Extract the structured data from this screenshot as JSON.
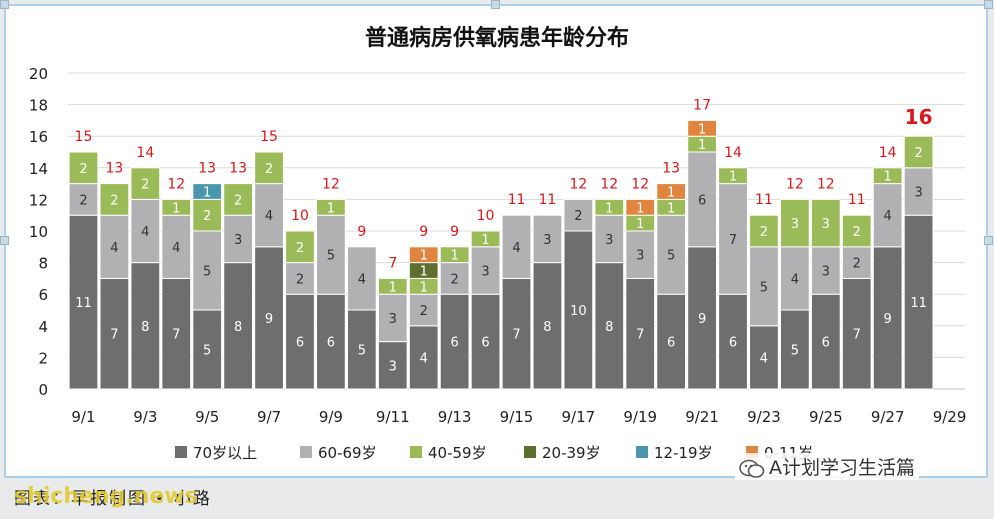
{
  "chart_data": {
    "type": "bar",
    "stacked": true,
    "title": "普通病房供氧病患年龄分布",
    "ylim": [
      0,
      20
    ],
    "yticks": [
      0,
      2,
      4,
      6,
      8,
      10,
      12,
      14,
      16,
      18,
      20
    ],
    "grid": true,
    "legend_position": "bottom",
    "categories": [
      "9/1",
      "9/2",
      "9/3",
      "9/4",
      "9/5",
      "9/6",
      "9/7",
      "9/8",
      "9/9",
      "9/10",
      "9/11",
      "9/12",
      "9/13",
      "9/14",
      "9/15",
      "9/16",
      "9/17",
      "9/18",
      "9/19",
      "9/20",
      "9/21",
      "9/22",
      "9/23",
      "9/24",
      "9/25",
      "9/26",
      "9/27",
      "9/28",
      "9/29"
    ],
    "xtick_labels": [
      "9/1",
      "9/3",
      "9/5",
      "9/7",
      "9/9",
      "9/11",
      "9/13",
      "9/15",
      "9/17",
      "9/19",
      "9/21",
      "9/23",
      "9/25",
      "9/27",
      "9/29"
    ],
    "series": [
      {
        "name": "70岁以上",
        "color": "#6e6e6e",
        "values": [
          11,
          7,
          8,
          7,
          5,
          8,
          9,
          6,
          6,
          5,
          3,
          4,
          6,
          6,
          7,
          8,
          10,
          8,
          7,
          6,
          9,
          6,
          4,
          5,
          6,
          7,
          9,
          11,
          null
        ]
      },
      {
        "name": "60-69岁",
        "color": "#b1b1b3",
        "values": [
          2,
          4,
          4,
          4,
          5,
          3,
          4,
          2,
          5,
          4,
          3,
          2,
          2,
          3,
          4,
          3,
          2,
          3,
          3,
          5,
          6,
          7,
          5,
          4,
          3,
          2,
          4,
          3,
          null
        ]
      },
      {
        "name": "40-59岁",
        "color": "#9bbb59",
        "values": [
          2,
          2,
          2,
          1,
          2,
          2,
          2,
          2,
          1,
          0,
          1,
          1,
          1,
          1,
          0,
          0,
          0,
          1,
          1,
          1,
          1,
          1,
          2,
          3,
          3,
          2,
          1,
          2,
          null
        ]
      },
      {
        "name": "20-39岁",
        "color": "#5e6e2e",
        "values": [
          0,
          0,
          0,
          0,
          0,
          0,
          0,
          0,
          0,
          0,
          0,
          1,
          0,
          0,
          0,
          0,
          0,
          0,
          0,
          0,
          0,
          0,
          0,
          0,
          0,
          0,
          0,
          0,
          null
        ]
      },
      {
        "name": "12-19岁",
        "color": "#4a97ad",
        "values": [
          0,
          0,
          0,
          0,
          1,
          0,
          0,
          0,
          0,
          0,
          0,
          0,
          0,
          0,
          0,
          0,
          0,
          0,
          0,
          0,
          0,
          0,
          0,
          0,
          0,
          0,
          0,
          0,
          null
        ]
      },
      {
        "name": "0-11岁",
        "color": "#e0853f",
        "values": [
          0,
          0,
          0,
          0,
          0,
          0,
          0,
          0,
          0,
          0,
          0,
          1,
          0,
          0,
          0,
          0,
          0,
          0,
          1,
          1,
          1,
          0,
          0,
          0,
          0,
          0,
          0,
          0,
          null
        ]
      }
    ],
    "totals": [
      15,
      13,
      14,
      12,
      13,
      13,
      15,
      10,
      12,
      9,
      7,
      9,
      9,
      10,
      11,
      11,
      12,
      12,
      12,
      13,
      17,
      14,
      11,
      12,
      12,
      11,
      14,
      16,
      null
    ],
    "total_label_color": "#d7191c"
  },
  "footer": {
    "left_text": "图表：早报制图 • 小路",
    "watermark": "shicheng.news",
    "right_text": "A计划学习生活篇"
  }
}
